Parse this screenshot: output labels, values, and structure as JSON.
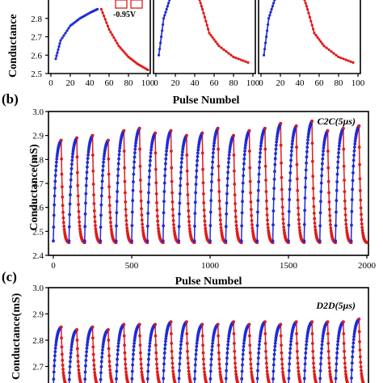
{
  "colors": {
    "potentiation": "#1f2bd6",
    "depression": "#e01b1b"
  },
  "chart_data": [
    {
      "id": "a",
      "type": "line",
      "panels": [
        {
          "x": [
            0,
            100
          ],
          "annotation": "-0.95V",
          "xticks": [
            0,
            20,
            40,
            60,
            80,
            100
          ]
        },
        {
          "x": [
            0,
            100
          ],
          "xticks": [
            0,
            20,
            40,
            60,
            80,
            100
          ]
        },
        {
          "x": [
            0,
            100
          ],
          "xticks": [
            0,
            20,
            40,
            60,
            80,
            100
          ]
        }
      ],
      "ylabel": "Conductance",
      "ylim": [
        2.5,
        2.9
      ],
      "yticks": [
        2.5,
        2.6,
        2.7,
        2.8
      ],
      "xlabel": "Pulse Numbel",
      "series": [
        {
          "phase": "potentiation",
          "x": [
            5,
            10,
            20,
            30,
            40,
            48
          ],
          "y": [
            2.58,
            2.68,
            2.76,
            2.8,
            2.83,
            2.85
          ]
        },
        {
          "phase": "depression",
          "x": [
            52,
            60,
            70,
            80,
            90,
            100
          ],
          "y": [
            2.85,
            2.74,
            2.65,
            2.59,
            2.55,
            2.52
          ]
        }
      ]
    },
    {
      "id": "b",
      "type": "line",
      "panel_letter": "(b)",
      "tag": "C2C(5μs)",
      "ylabel": "Conductance(mS)",
      "xlabel": "Pulse Numbel",
      "xlim": [
        0,
        2000
      ],
      "xticks": [
        0,
        500,
        1000,
        1500,
        2000
      ],
      "ylim": [
        2.4,
        3.0
      ],
      "yticks": [
        2.4,
        2.5,
        2.6,
        2.7,
        2.8,
        2.9,
        3.0
      ],
      "cycles": 20,
      "pulses_per_cycle": 100,
      "series": [
        {
          "phase": "potentiation",
          "start": 2.46,
          "peaks": [
            2.88,
            2.89,
            2.9,
            2.88,
            2.92,
            2.93,
            2.91,
            2.92,
            2.9,
            2.91,
            2.93,
            2.9,
            2.92,
            2.93,
            2.95,
            2.94,
            2.96,
            2.92,
            2.93,
            2.94
          ]
        },
        {
          "phase": "depression",
          "end": 2.45
        }
      ]
    },
    {
      "id": "c",
      "type": "line",
      "panel_letter": "(c)",
      "tag": "D2D(5μs)",
      "ylabel": "Conductance(mS)",
      "ylim": [
        2.6,
        3.0
      ],
      "yticks": [
        2.7,
        2.8,
        2.9,
        3.0
      ],
      "cycles": 20,
      "series": [
        {
          "phase": "potentiation",
          "start": 2.62,
          "peaks": [
            2.85,
            2.84,
            2.85,
            2.84,
            2.86,
            2.86,
            2.86,
            2.87,
            2.87,
            2.86,
            2.86,
            2.87,
            2.86,
            2.87,
            2.86,
            2.87,
            2.87,
            2.87,
            2.87,
            2.88
          ]
        },
        {
          "phase": "depression",
          "end": 2.62
        }
      ]
    }
  ]
}
